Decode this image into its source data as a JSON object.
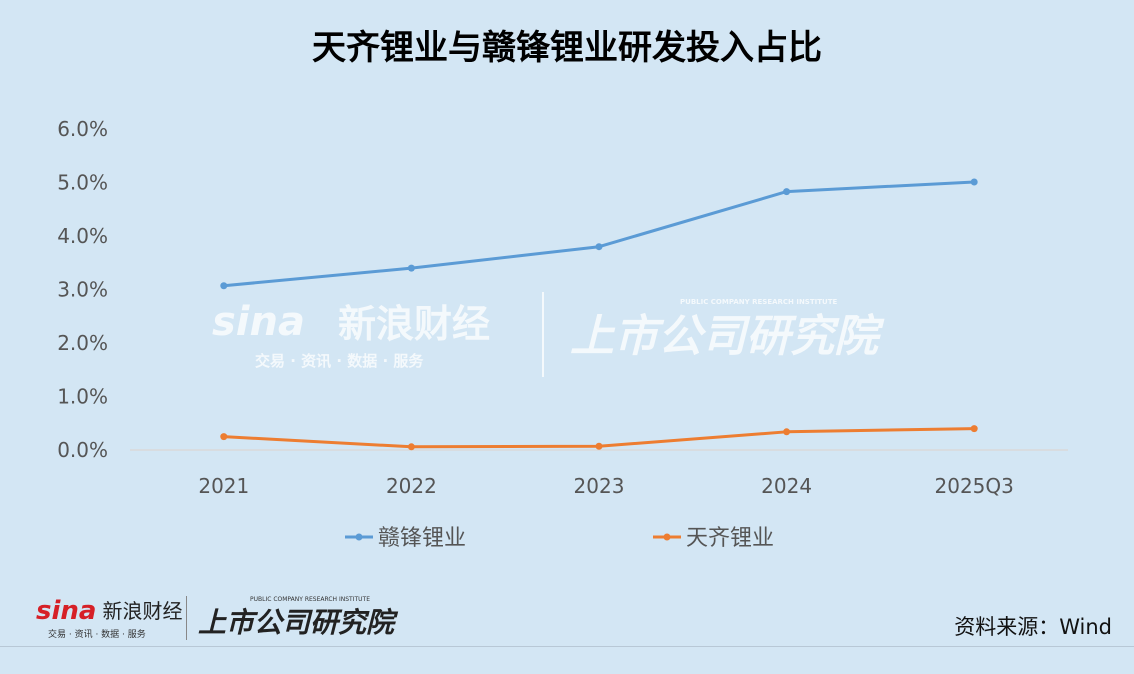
{
  "chart_data": {
    "type": "line",
    "title": "天齐锂业与赣锋锂业研发投入占比",
    "categories": [
      "2021",
      "2022",
      "2023",
      "2024",
      "2025Q3"
    ],
    "series": [
      {
        "name": "赣锋锂业",
        "color": "#5b9bd5",
        "values": [
          3.07,
          3.4,
          3.8,
          4.83,
          5.01
        ]
      },
      {
        "name": "天齐锂业",
        "color": "#ed7d31",
        "values": [
          0.25,
          0.06,
          0.07,
          0.34,
          0.4
        ]
      }
    ],
    "ylim": [
      0,
      6
    ],
    "yticks": [
      "0.0%",
      "1.0%",
      "2.0%",
      "3.0%",
      "4.0%",
      "5.0%",
      "6.0%"
    ],
    "xlabel": "",
    "ylabel": "",
    "legend_position": "bottom"
  },
  "watermark": {
    "brand": "sina",
    "name": "新浪财经",
    "slogan": "交易 · 资讯 · 数据 · 服务",
    "institute": "上市公司研究院",
    "institute_en": "PUBLIC COMPANY RESEARCH INSTITUTE"
  },
  "footer": {
    "brand": "sina",
    "name": "新浪财经",
    "slogan": "交易 · 资讯 · 数据 · 服务",
    "institute": "上市公司研究院",
    "institute_en": "PUBLIC COMPANY RESEARCH INSTITUTE",
    "source": "资料来源：Wind"
  }
}
